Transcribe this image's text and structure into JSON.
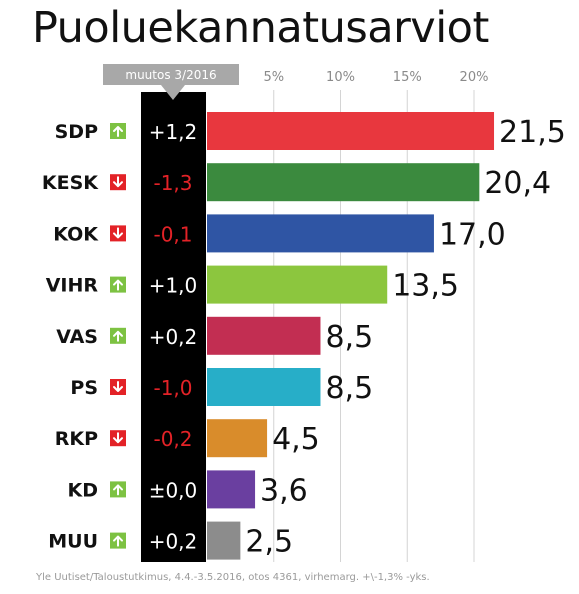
{
  "title": "Puoluekannatusarviot",
  "source": "Yle Uutiset/Taloustutkimus, 4.4.-3.5.2016, otos 4361, virhemarg. +\\-1,3% -yks.",
  "chart_data": {
    "type": "bar",
    "orientation": "horizontal",
    "title": "Puoluekannatusarviot",
    "change_header": "muutos 3/2016",
    "x_ticks": [
      "5%",
      "10%",
      "15%",
      "20%"
    ],
    "xlim": [
      0,
      22
    ],
    "grid": true,
    "categories": [
      "SDP",
      "KESK",
      "KOK",
      "VIHR",
      "VAS",
      "PS",
      "RKP",
      "KD",
      "MUU"
    ],
    "values": [
      21.5,
      20.4,
      17.0,
      13.5,
      8.5,
      8.5,
      4.5,
      3.6,
      2.5
    ],
    "value_labels": [
      "21,5",
      "20,4",
      "17,0",
      "13,5",
      "8,5",
      "8,5",
      "4,5",
      "3,6",
      "2,5"
    ],
    "changes": [
      "+1,2",
      "-1,3",
      "-0,1",
      "+1,0",
      "+0,2",
      "-1,0",
      "-0,2",
      "±0,0",
      "+0,2"
    ],
    "directions": [
      "up",
      "down",
      "down",
      "up",
      "up",
      "down",
      "down",
      "up",
      "up"
    ],
    "colors": [
      "#e8373e",
      "#3b8a3e",
      "#2f55a4",
      "#8cc63e",
      "#c22e52",
      "#27aec8",
      "#d98c2b",
      "#6a3fa0",
      "#8c8c8c"
    ],
    "up_color": "#7dc242",
    "down_color": "#e32227"
  }
}
